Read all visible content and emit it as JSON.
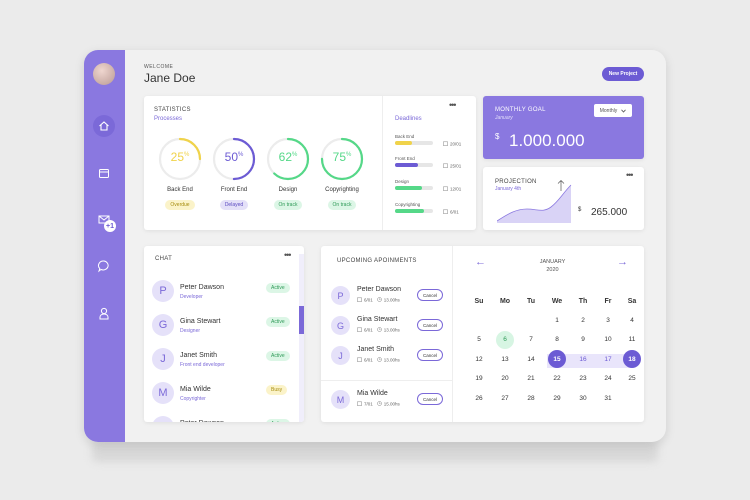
{
  "header": {
    "welcome": "WELCOME",
    "user_name": "Jane Doe",
    "new_project_label": "New Project"
  },
  "sidebar": {
    "items": [
      {
        "icon": "home-icon",
        "active": true
      },
      {
        "icon": "calendar-icon",
        "active": false
      },
      {
        "icon": "mail-icon",
        "active": false,
        "badge": "+1"
      },
      {
        "icon": "chat-bubble-icon",
        "active": false
      },
      {
        "icon": "user-icon",
        "active": false
      }
    ]
  },
  "statistics": {
    "title": "STATISTICS",
    "subtitle": "Processes",
    "gauges": [
      {
        "name": "Back End",
        "value": "25",
        "unit": "%",
        "percent": 25,
        "status": "Overdue",
        "color": "#f0d34a",
        "status_bg": "#fbf3c9",
        "status_fg": "#a68c10"
      },
      {
        "name": "Front End",
        "value": "50",
        "unit": "%",
        "percent": 50,
        "status": "Delayed",
        "color": "#6c5bd4",
        "status_bg": "#e4e0f8",
        "status_fg": "#5a49c0"
      },
      {
        "name": "Design",
        "value": "62",
        "unit": "%",
        "percent": 62,
        "status": "On track",
        "color": "#55d888",
        "status_bg": "#dcf6e6",
        "status_fg": "#2f9a58"
      },
      {
        "name": "Copyrighting",
        "value": "75",
        "unit": "%",
        "percent": 75,
        "status": "On track",
        "color": "#55d888",
        "status_bg": "#dcf6e6",
        "status_fg": "#2f9a58"
      }
    ]
  },
  "deadlines": {
    "title": "Deadlines",
    "items": [
      {
        "label": "Back End",
        "date": "20/01",
        "progress": 0.45,
        "color": "#f0d34a"
      },
      {
        "label": "Front End",
        "date": "25/01",
        "progress": 0.6,
        "color": "#6c5bd4"
      },
      {
        "label": "Design",
        "date": "12/01",
        "progress": 0.7,
        "color": "#55d888"
      },
      {
        "label": "Copyrighting",
        "date": "6/01",
        "progress": 0.75,
        "color": "#55d888"
      }
    ]
  },
  "monthly_goal": {
    "title": "MONTHLY GOAL",
    "subtitle": "January",
    "currency": "$",
    "amount": "1.000.000",
    "period_select": "Monthly"
  },
  "projection": {
    "title": "PROJECTION",
    "subtitle": "January 4th",
    "currency": "$",
    "amount": "265.000"
  },
  "chat": {
    "title": "CHAT",
    "contacts": [
      {
        "initial": "P",
        "name": "Peter Dawson",
        "role": "Developer",
        "status": "Active",
        "status_bg": "#dcf6e6",
        "status_fg": "#2f9a58"
      },
      {
        "initial": "G",
        "name": "Gina Stewart",
        "role": "Designer",
        "status": "Active",
        "status_bg": "#dcf6e6",
        "status_fg": "#2f9a58"
      },
      {
        "initial": "J",
        "name": "Janet Smith",
        "role": "Front end developer",
        "status": "Active",
        "status_bg": "#dcf6e6",
        "status_fg": "#2f9a58"
      },
      {
        "initial": "M",
        "name": "Mia Wilde",
        "role": "Copyrighter",
        "status": "Busy",
        "status_bg": "#fbf3c9",
        "status_fg": "#a68c10"
      },
      {
        "initial": "P",
        "name": "Peter Dawson",
        "role": "",
        "status": "Active",
        "status_bg": "#dcf6e6",
        "status_fg": "#2f9a58"
      }
    ]
  },
  "appointments": {
    "title": "UPCOMING APOINMENTS",
    "items": [
      {
        "initial": "P",
        "name": "Peter Dawson",
        "date": "6/01",
        "time": "13.00hs",
        "action": "Cancel"
      },
      {
        "initial": "G",
        "name": "Gina Stewart",
        "date": "6/01",
        "time": "13.00hs",
        "action": "Cancel"
      },
      {
        "initial": "J",
        "name": "Janet Smith",
        "date": "6/01",
        "time": "13.00hs",
        "action": "Cancel"
      },
      {
        "initial": "M",
        "name": "Mia Wilde",
        "date": "7/01",
        "time": "15.00hs",
        "action": "Cancel"
      }
    ]
  },
  "calendar": {
    "month": "JANUARY",
    "year": "2020",
    "weekdays": [
      "Su",
      "Mo",
      "Tu",
      "We",
      "Th",
      "Fr",
      "Sa"
    ],
    "weeks": [
      [
        "",
        "",
        "",
        "1",
        "2",
        "3",
        "4"
      ],
      [
        "5",
        "6",
        "7",
        "8",
        "9",
        "10",
        "11"
      ],
      [
        "12",
        "13",
        "14",
        "15",
        "16",
        "17",
        "18"
      ],
      [
        "19",
        "20",
        "21",
        "22",
        "23",
        "24",
        "25"
      ],
      [
        "26",
        "27",
        "28",
        "29",
        "30",
        "31",
        ""
      ]
    ],
    "today": "6",
    "range_start": "15",
    "range_end": "18"
  }
}
